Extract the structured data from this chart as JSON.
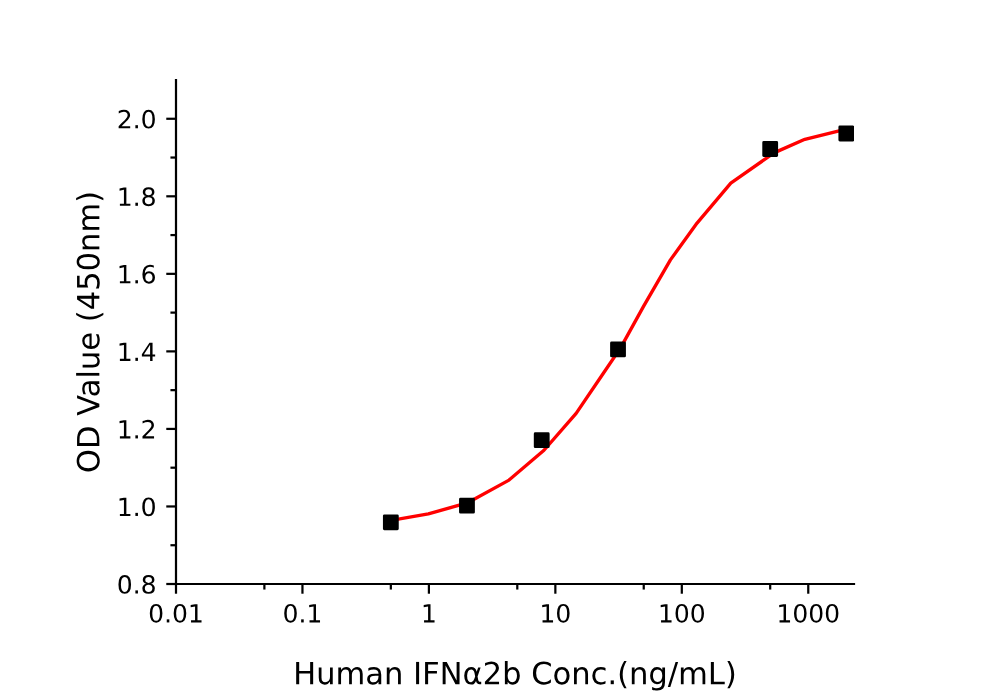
{
  "chart_data": {
    "type": "scatter",
    "xlabel": "Human IFNα2b Conc.(ng/mL)",
    "ylabel": "OD Value (450nm)",
    "log": "x",
    "series": [
      {
        "type": "line",
        "color": "#ff0000",
        "marker": "none",
        "line_style": "solid",
        "x": [
          0.504,
          0.99,
          2.01,
          4.3,
          8.13,
          14.6,
          23.9,
          32.8,
          49.8,
          81.3,
          132,
          244,
          536,
          940,
          2163
        ],
        "values": [
          0.964,
          0.981,
          1.009,
          1.068,
          1.145,
          1.24,
          1.343,
          1.409,
          1.516,
          1.636,
          1.731,
          1.834,
          1.912,
          1.947,
          1.976
        ]
      },
      {
        "color": "#000000",
        "marker": "square",
        "x": [
          0.5,
          2,
          7.8,
          31.3,
          500,
          2000
        ],
        "values": [
          0.959,
          1.002,
          1.171,
          1.405,
          1.922,
          1.962
        ]
      }
    ],
    "xlim": [
      0.01,
      2300
    ],
    "ylim": [
      0.8,
      2.1
    ],
    "xticks": [
      0.01,
      {
        "value": 0.05,
        "label": null
      },
      0.1,
      {
        "value": 0.5,
        "label": null
      },
      1,
      {
        "value": 5,
        "label": null
      },
      10,
      {
        "value": 50,
        "label": null
      },
      100,
      {
        "value": 500,
        "label": null
      },
      1000
    ],
    "yticks": [
      0.8,
      {
        "value": 0.9,
        "label": null
      },
      {
        "value": 1,
        "label": "1.0"
      },
      {
        "value": 1.1,
        "label": null
      },
      1.2,
      {
        "value": 1.3,
        "label": null
      },
      1.4,
      {
        "value": 1.5,
        "label": null
      },
      1.6,
      {
        "value": 1.7,
        "label": null
      },
      1.8,
      {
        "value": 1.9,
        "label": null
      },
      {
        "value": 2,
        "label": "2.0"
      }
    ],
    "grid": false,
    "legend": false
  }
}
